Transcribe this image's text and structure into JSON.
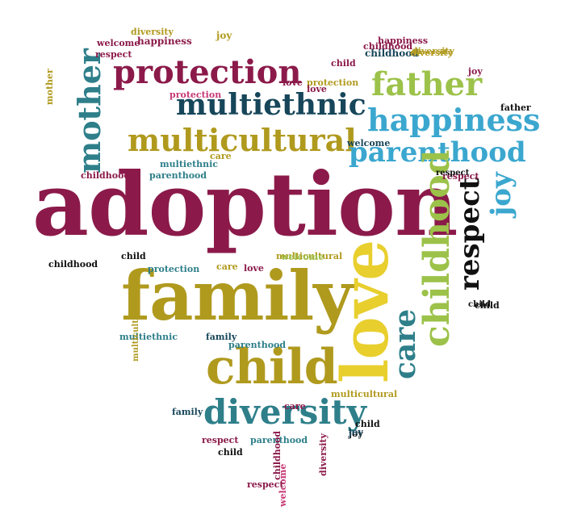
{
  "words": [
    "adoption",
    "family",
    "child",
    "love",
    "diversity",
    "multiethnic",
    "multicultural",
    "protection",
    "mother",
    "father",
    "happiness",
    "parenthood",
    "childhood",
    "respect",
    "care",
    "joy",
    "happiness",
    "welcome",
    "diversity",
    "joy",
    "respect",
    "child",
    "childhood",
    "multiethnic",
    "protection",
    "parenthood",
    "care",
    "love",
    "welcome",
    "multicultural",
    "childhood",
    "respect",
    "joy",
    "father",
    "child",
    "diversity",
    "happiness",
    "protection",
    "family",
    "multiethnic",
    "respect",
    "childhood",
    "love",
    "care",
    "child",
    "parenthood",
    "diversity",
    "multicultural",
    "joy",
    "respect",
    "child",
    "childhood",
    "welcome",
    "mother",
    "child",
    "family",
    "care",
    "love",
    "joy",
    "respect",
    "multicultural",
    "parenthood",
    "child",
    "diversity",
    "childhood",
    "welcome",
    "protection"
  ],
  "colors": {
    "magenta": "#8b1a4a",
    "olive": "#b09a1e",
    "teal": "#2e7f8a",
    "navy": "#17465a",
    "cyan": "#3ba7cf",
    "lime": "#9cc24a",
    "yellow": "#e8cf2e",
    "pink": "#c83a77"
  }
}
